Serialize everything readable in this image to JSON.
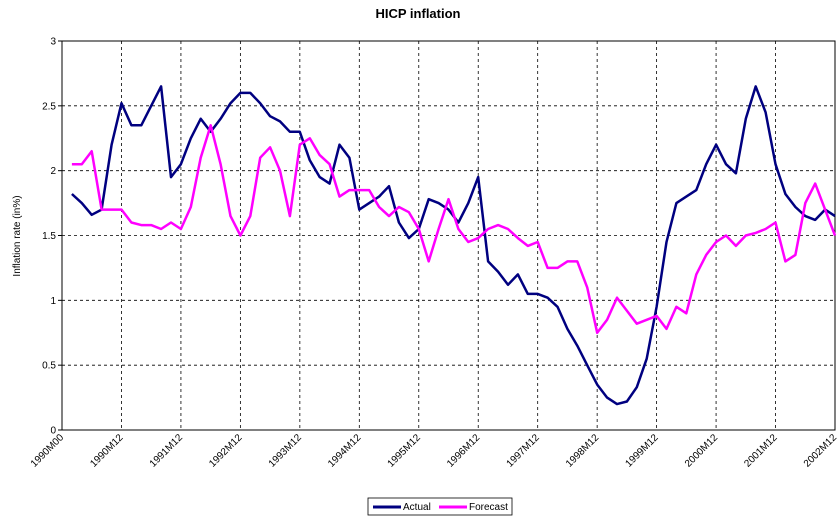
{
  "chart_data": {
    "type": "line",
    "title": "HICP inflation",
    "y_label": "Inflation rate (in%)",
    "categories": [
      "1990M00",
      null,
      null,
      null,
      null,
      null,
      "1990M12",
      null,
      null,
      null,
      null,
      null,
      "1991M12",
      null,
      null,
      null,
      null,
      null,
      "1992M12",
      null,
      null,
      null,
      null,
      null,
      "1993M12",
      null,
      null,
      null,
      null,
      null,
      "1994M12",
      null,
      null,
      null,
      null,
      null,
      "1995M12",
      null,
      null,
      null,
      null,
      null,
      "1996M12",
      null,
      null,
      null,
      null,
      null,
      "1997M12",
      null,
      null,
      null,
      null,
      null,
      "1998M12",
      null,
      null,
      null,
      null,
      null,
      "1999M12",
      null,
      null,
      null,
      null,
      null,
      "2000M12",
      null,
      null,
      null,
      null,
      null,
      "2001M12",
      null,
      null,
      null,
      null,
      null,
      "2002M12"
    ],
    "series": [
      {
        "name": "Actual",
        "color": "#000080",
        "values": [
          null,
          1.82,
          1.75,
          1.66,
          1.7,
          2.2,
          2.52,
          2.35,
          2.35,
          2.5,
          2.65,
          1.95,
          2.05,
          2.25,
          2.4,
          2.3,
          2.4,
          2.52,
          2.6,
          2.6,
          2.52,
          2.42,
          2.38,
          2.3,
          2.3,
          2.08,
          1.95,
          1.9,
          2.2,
          2.1,
          1.7,
          1.75,
          1.8,
          1.88,
          1.6,
          1.48,
          1.55,
          1.78,
          1.75,
          1.7,
          1.6,
          1.75,
          1.95,
          1.3,
          1.22,
          1.12,
          1.2,
          1.05,
          1.05,
          1.02,
          0.95,
          0.78,
          0.65,
          0.5,
          0.35,
          0.25,
          0.2,
          0.22,
          0.33,
          0.55,
          0.95,
          1.45,
          1.75,
          1.8,
          1.85,
          2.05,
          2.2,
          2.05,
          1.98,
          2.4,
          2.65,
          2.45,
          2.05,
          1.82,
          1.72,
          1.65,
          1.62,
          1.7,
          1.65
        ]
      },
      {
        "name": "Forecast",
        "color": "#ff00ff",
        "values": [
          null,
          2.05,
          2.05,
          2.15,
          1.7,
          1.7,
          1.7,
          1.6,
          1.58,
          1.58,
          1.55,
          1.6,
          1.55,
          1.72,
          2.1,
          2.35,
          2.05,
          1.65,
          1.5,
          1.65,
          2.1,
          2.18,
          2.0,
          1.65,
          2.2,
          2.25,
          2.12,
          2.05,
          1.8,
          1.85,
          1.85,
          1.85,
          1.72,
          1.65,
          1.72,
          1.68,
          1.55,
          1.3,
          1.55,
          1.78,
          1.55,
          1.45,
          1.48,
          1.55,
          1.58,
          1.55,
          1.48,
          1.42,
          1.45,
          1.25,
          1.25,
          1.3,
          1.3,
          1.1,
          0.75,
          0.85,
          1.02,
          0.92,
          0.82,
          0.85,
          0.88,
          0.78,
          0.95,
          0.9,
          1.2,
          1.35,
          1.45,
          1.5,
          1.42,
          1.5,
          1.52,
          1.55,
          1.6,
          1.3,
          1.35,
          1.75,
          1.9,
          1.7,
          1.5
        ]
      }
    ],
    "ylim": [
      0,
      3
    ],
    "yticks": [
      0,
      0.5,
      1,
      1.5,
      2,
      2.5,
      3
    ],
    "grid": true
  }
}
